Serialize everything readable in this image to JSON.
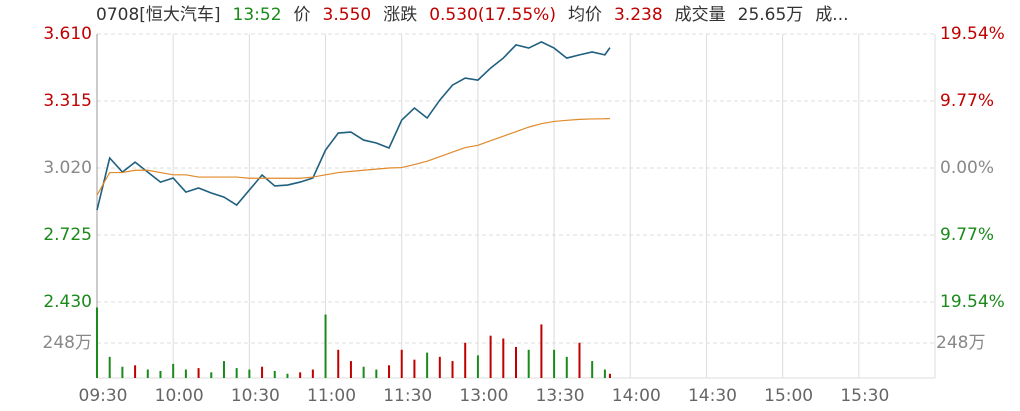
{
  "chart_data": {
    "type": "line",
    "header_items": [
      {
        "text": "0708[恒大汽车]",
        "color": "#333333"
      },
      {
        "text": "13:52",
        "color": "#1a8a1a"
      },
      {
        "text": "价",
        "color": "#333333"
      },
      {
        "text": "3.550",
        "color": "#c00000"
      },
      {
        "text": "涨跌",
        "color": "#333333"
      },
      {
        "text": "0.530(17.55%)",
        "color": "#c00000"
      },
      {
        "text": "均价",
        "color": "#333333"
      },
      {
        "text": "3.238",
        "color": "#c00000"
      },
      {
        "text": "成交量",
        "color": "#333333"
      },
      {
        "text": "25.65万",
        "color": "#333333"
      },
      {
        "text": "成...",
        "color": "#333333"
      }
    ],
    "up_color": "#c00000",
    "down_color": "#1a8a1a",
    "flat_color": "#888888",
    "x": [
      0,
      5,
      10,
      15,
      20,
      25,
      30,
      35,
      40,
      45,
      50,
      55,
      60,
      65,
      70,
      75,
      80,
      85,
      90,
      95,
      100,
      105,
      110,
      115,
      120,
      125,
      130,
      135,
      140,
      145,
      150,
      155,
      160,
      165,
      170,
      175,
      180,
      185,
      190,
      195,
      200,
      202
    ],
    "xlim": [
      0,
      330
    ],
    "xticks": [
      {
        "value": 0,
        "label": "09:30"
      },
      {
        "value": 30,
        "label": "10:00"
      },
      {
        "value": 60,
        "label": "10:30"
      },
      {
        "value": 90,
        "label": "11:00"
      },
      {
        "value": 120,
        "label": "11:30"
      },
      {
        "value": 150,
        "label": "13:00"
      },
      {
        "value": 180,
        "label": "13:30"
      },
      {
        "value": 210,
        "label": "14:00"
      },
      {
        "value": 240,
        "label": "14:30"
      },
      {
        "value": 270,
        "label": "15:00"
      },
      {
        "value": 300,
        "label": "15:30"
      }
    ],
    "ylim": [
      2.43,
      3.61
    ],
    "yticks": [
      {
        "value": 3.61,
        "label": "3.610"
      },
      {
        "value": 3.315,
        "label": "3.315"
      },
      {
        "value": 3.02,
        "label": "3.020"
      },
      {
        "value": 2.725,
        "label": "2.725"
      },
      {
        "value": 2.43,
        "label": "2.430"
      }
    ],
    "y2lim": [
      -19.54,
      19.54
    ],
    "y2ticks": [
      {
        "value": 19.54,
        "label": "19.54%"
      },
      {
        "value": 9.77,
        "label": "9.77%"
      },
      {
        "value": 0,
        "label": "0.00%"
      },
      {
        "value": -9.77,
        "label": "9.77%"
      },
      {
        "value": -19.54,
        "label": "19.54%"
      }
    ],
    "series": [
      {
        "color": "#1f5f7f",
        "values": [
          2.835,
          3.064,
          3.002,
          3.046,
          3.002,
          2.958,
          2.976,
          2.914,
          2.932,
          2.91,
          2.892,
          2.857,
          2.923,
          2.989,
          2.941,
          2.945,
          2.958,
          2.976,
          3.099,
          3.174,
          3.178,
          3.143,
          3.13,
          3.108,
          3.231,
          3.284,
          3.24,
          3.319,
          3.385,
          3.416,
          3.407,
          3.46,
          3.504,
          3.562,
          3.548,
          3.575,
          3.548,
          3.504,
          3.518,
          3.531,
          3.518,
          3.55
        ]
      },
      {
        "color": "#e08a2a",
        "values": [
          2.9,
          3.0,
          3.0,
          3.01,
          3.01,
          3.0,
          2.99,
          2.99,
          2.98,
          2.98,
          2.98,
          2.98,
          2.975,
          2.975,
          2.975,
          2.975,
          2.975,
          2.98,
          2.99,
          3.0,
          3.005,
          3.01,
          3.015,
          3.02,
          3.022,
          3.035,
          3.05,
          3.07,
          3.09,
          3.11,
          3.12,
          3.14,
          3.16,
          3.18,
          3.2,
          3.215,
          3.225,
          3.23,
          3.234,
          3.236,
          3.237,
          3.238
        ]
      }
    ],
    "volume": {
      "ylim": [
        0,
        553
      ],
      "yticks": [
        {
          "value": 248,
          "label": "248万"
        }
      ],
      "values": [
        500,
        150,
        80,
        90,
        60,
        50,
        100,
        60,
        70,
        40,
        120,
        70,
        60,
        80,
        50,
        30,
        40,
        60,
        450,
        200,
        120,
        80,
        60,
        90,
        200,
        130,
        180,
        150,
        120,
        250,
        160,
        300,
        280,
        220,
        200,
        380,
        200,
        150,
        250,
        120,
        60,
        30
      ],
      "colors": [
        "#1a8a1a",
        "#1a8a1a",
        "#1a8a1a",
        "#c00000",
        "#1a8a1a",
        "#1a8a1a",
        "#1a8a1a",
        "#1a8a1a",
        "#c00000",
        "#1a8a1a",
        "#1a8a1a",
        "#1a8a1a",
        "#1a8a1a",
        "#c00000",
        "#1a8a1a",
        "#1a8a1a",
        "#c00000",
        "#c00000",
        "#1a8a1a",
        "#c00000",
        "#c00000",
        "#1a8a1a",
        "#1a8a1a",
        "#c00000",
        "#c00000",
        "#c00000",
        "#1a8a1a",
        "#c00000",
        "#c00000",
        "#c00000",
        "#1a8a1a",
        "#c00000",
        "#c00000",
        "#c00000",
        "#1a8a1a",
        "#c00000",
        "#1a8a1a",
        "#1a8a1a",
        "#c00000",
        "#1a8a1a",
        "#1a8a1a",
        "#c00000"
      ]
    }
  }
}
